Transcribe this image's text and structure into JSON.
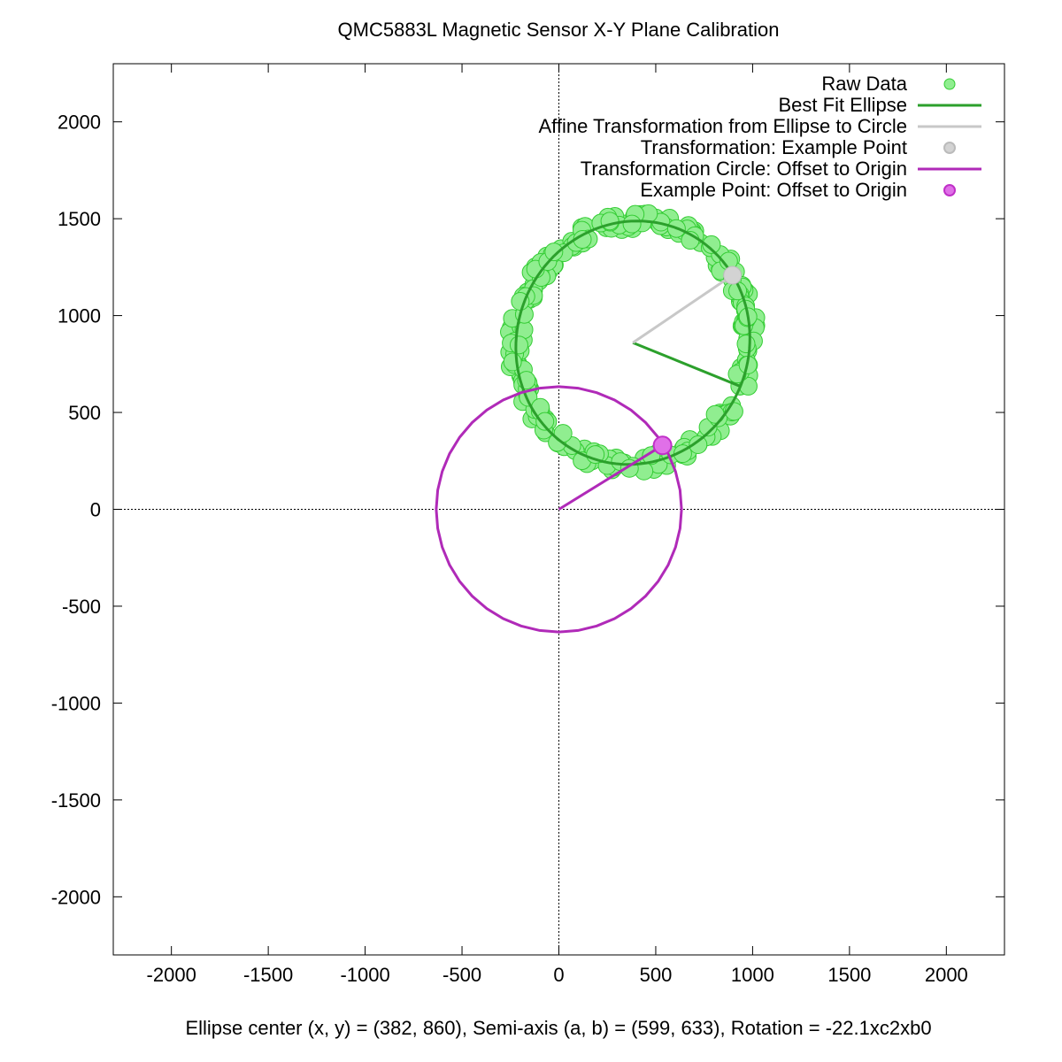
{
  "chart_data": {
    "type": "scatter",
    "title": "QMC5883L Magnetic Sensor X-Y Plane Calibration",
    "xlabel": "Ellipse center (x, y) = (382, 860), Semi-axis (a, b) = (599, 633), Rotation = -22.1xc2xb0",
    "ylabel": "",
    "xlim": [
      -2300,
      2300
    ],
    "ylim": [
      -2300,
      2300
    ],
    "xticks": [
      -2000,
      -1500,
      -1000,
      -500,
      0,
      500,
      1000,
      1500,
      2000
    ],
    "yticks": [
      -2000,
      -1500,
      -1000,
      -500,
      0,
      500,
      1000,
      1500,
      2000
    ],
    "zero_axes": true,
    "grid": false,
    "legend_position": "top-right",
    "ellipse": {
      "cx": 382,
      "cy": 860,
      "a": 599,
      "b": 633,
      "rotation_deg": -22.1
    },
    "example_point": {
      "x": 896,
      "y": 1208
    },
    "offset_point": {
      "x": 535,
      "y": 330
    },
    "offset_circle_radius": 633,
    "series": [
      {
        "name": "Raw Data",
        "kind": "points",
        "color": "#90ee90",
        "edge": "#33cc33",
        "noise_seed": 7,
        "count": 260
      },
      {
        "name": "Best Fit Ellipse",
        "kind": "ellipse",
        "color": "#2ca02c"
      },
      {
        "name": "Affine Transformation from Ellipse to Circle",
        "kind": "affine",
        "color": "#c8c8c8"
      },
      {
        "name": "Transformation: Example Point",
        "kind": "point",
        "color": "#d3d3d3"
      },
      {
        "name": "Transformation Circle: Offset to Origin",
        "kind": "circle",
        "color": "#b02ab8"
      },
      {
        "name": "Example Point: Offset to Origin",
        "kind": "point",
        "color": "#c030c8"
      }
    ]
  }
}
